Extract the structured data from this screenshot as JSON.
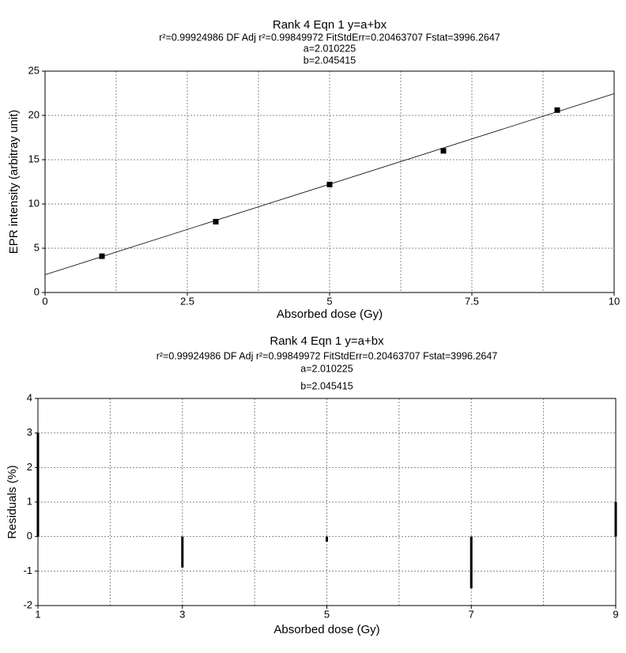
{
  "chart_data": [
    {
      "type": "scatter",
      "title": "Rank 4  Eqn 1  y=a+bx",
      "subtitle": "r²=0.99924986  DF Adj r²=0.99849972  FitStdErr=0.20463707  Fstat=3996.2647",
      "annotations": [
        "a=2.010225",
        "b=2.045415"
      ],
      "x_label": "Absorbed dose (Gy)",
      "y_label": "EPR intensity (arbitray unit)",
      "x": [
        1,
        3,
        5,
        7,
        9
      ],
      "values": [
        4.1,
        8.0,
        12.2,
        16.0,
        20.6
      ],
      "color": "#000000",
      "fit": {
        "x": [
          0,
          10
        ],
        "values": [
          2.01,
          22.46
        ]
      },
      "xlim": [
        0,
        10
      ],
      "xticks": [
        0,
        2.5,
        5,
        7.5,
        10
      ],
      "xgrid": [
        1.25,
        2.5,
        3.75,
        5,
        6.25,
        7.5,
        8.75
      ],
      "ylim": [
        0,
        25
      ],
      "yticks": [
        0,
        5,
        10,
        15,
        20,
        25
      ],
      "grid": true
    },
    {
      "type": "bar",
      "title": "Rank 4  Eqn 1  y=a+bx",
      "subtitle": "r²=0.99924986  DF Adj r²=0.99849972  FitStdErr=0.20463707  Fstat=3996.2647",
      "annotations": [
        "a=2.010225",
        "b=2.045415"
      ],
      "x_label": "Absorbed dose (Gy)",
      "y_label": "Residuals (%)",
      "x": [
        1,
        3,
        5,
        7,
        9
      ],
      "values": [
        3.0,
        -0.9,
        -0.15,
        -1.5,
        1.0
      ],
      "color": "#000000",
      "xlim": [
        1,
        9
      ],
      "xticks": [
        1,
        3,
        5,
        7,
        9
      ],
      "xgrid": [
        2,
        3,
        4,
        5,
        6,
        7,
        8
      ],
      "ylim": [
        -2,
        4
      ],
      "yticks": [
        -2,
        -1,
        0,
        1,
        2,
        3,
        4
      ],
      "grid": true
    }
  ]
}
